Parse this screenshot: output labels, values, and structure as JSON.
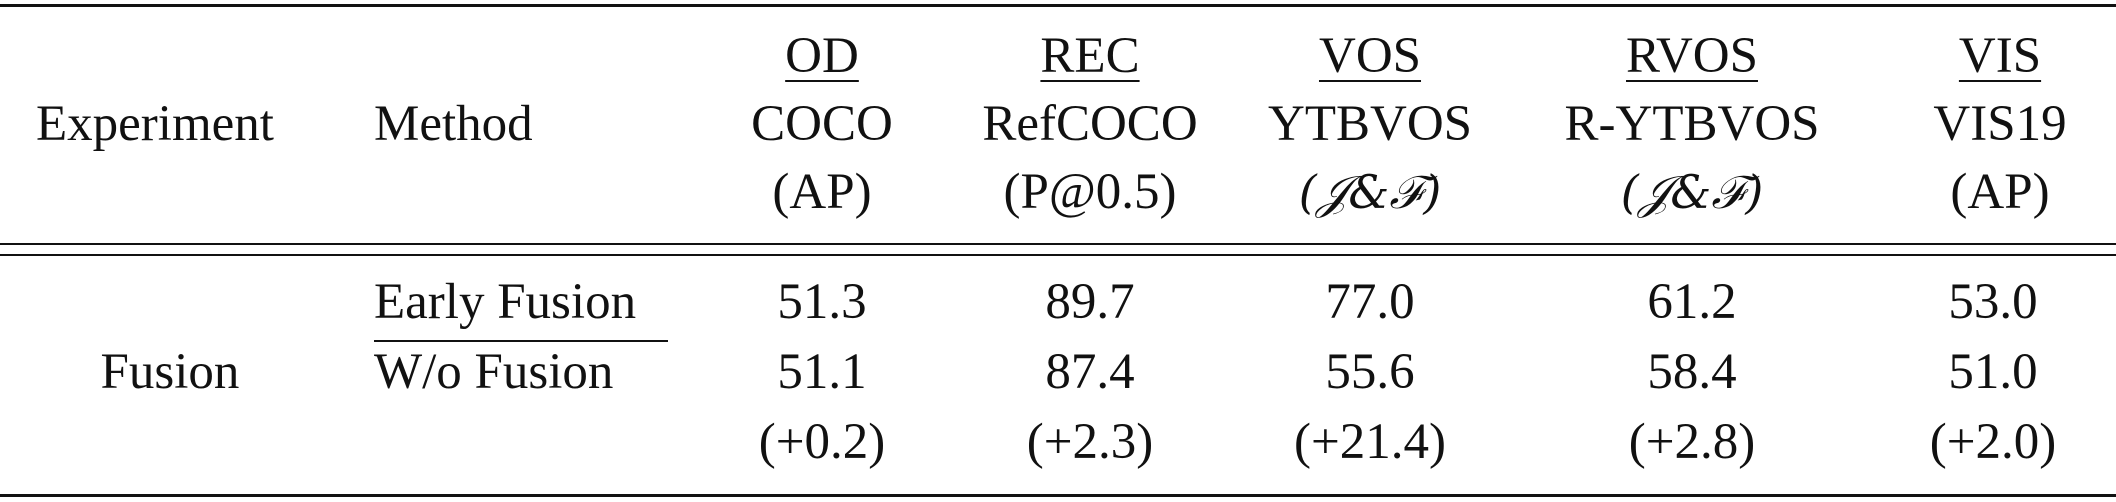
{
  "header": {
    "experiment": "Experiment",
    "method": "Method",
    "columns": [
      {
        "task": "OD",
        "dataset": "COCO",
        "metric": "(AP)",
        "metric_math": false
      },
      {
        "task": "REC",
        "dataset": "RefCOCO",
        "metric": "(P@0.5)",
        "metric_math": false
      },
      {
        "task": "VOS",
        "dataset": "YTBVOS",
        "metric": "(𝒥&ℱ)",
        "metric_math": true
      },
      {
        "task": "RVOS",
        "dataset": "R-YTBVOS",
        "metric": "(𝒥&ℱ)",
        "metric_math": true
      },
      {
        "task": "VIS",
        "dataset": "VIS19",
        "metric": "(AP)",
        "metric_math": false
      }
    ]
  },
  "body": {
    "experiment": "Fusion",
    "rows": [
      {
        "method": "Early Fusion",
        "values": [
          "51.3",
          "89.7",
          "77.0",
          "61.2",
          "53.0"
        ]
      },
      {
        "method": "W/o Fusion",
        "values": [
          "51.1",
          "87.4",
          "55.6",
          "58.4",
          "51.0"
        ]
      },
      {
        "method": "",
        "values": [
          "(+0.2)",
          "(+2.3)",
          "(+21.4)",
          "(+2.8)",
          "(+2.0)"
        ]
      }
    ]
  }
}
